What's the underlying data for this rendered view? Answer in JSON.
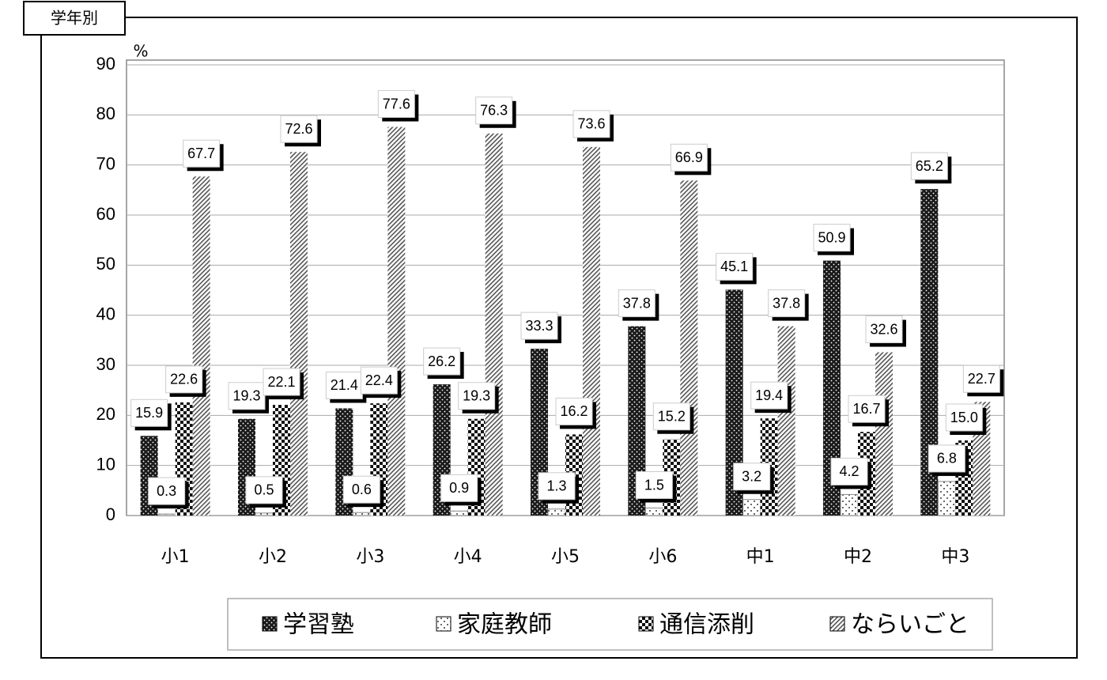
{
  "chart_data": {
    "type": "bar",
    "title": "学年別",
    "y_unit": "%",
    "categories": [
      "小1",
      "小2",
      "小3",
      "小4",
      "小5",
      "小6",
      "中1",
      "中2",
      "中3"
    ],
    "series": [
      {
        "name": "学習塾",
        "color": "#1a1a1a",
        "values": [
          15.9,
          19.3,
          21.4,
          26.2,
          33.3,
          37.8,
          45.1,
          50.9,
          65.2
        ]
      },
      {
        "name": "家庭教師",
        "color": "#ffffff",
        "values": [
          0.3,
          0.5,
          0.6,
          0.9,
          1.3,
          1.5,
          3.2,
          4.2,
          6.8
        ]
      },
      {
        "name": "通信添削",
        "color": "#111111",
        "values": [
          22.6,
          22.1,
          22.4,
          19.3,
          16.2,
          15.2,
          19.4,
          16.7,
          15.0
        ],
        "value_labels": [
          "22.6",
          "22.1",
          "22.4",
          "19.3",
          "16.2",
          "15.2",
          "19.4",
          "16.7",
          "15.0"
        ]
      },
      {
        "name": "ならいごと",
        "color": "#555555",
        "values": [
          67.7,
          72.6,
          77.6,
          76.3,
          73.6,
          66.9,
          37.8,
          32.6,
          22.7
        ]
      }
    ],
    "ylim": [
      0,
      90
    ],
    "yticks": [
      0,
      10,
      20,
      30,
      40,
      50,
      60,
      70,
      80,
      90
    ],
    "grid": true
  }
}
